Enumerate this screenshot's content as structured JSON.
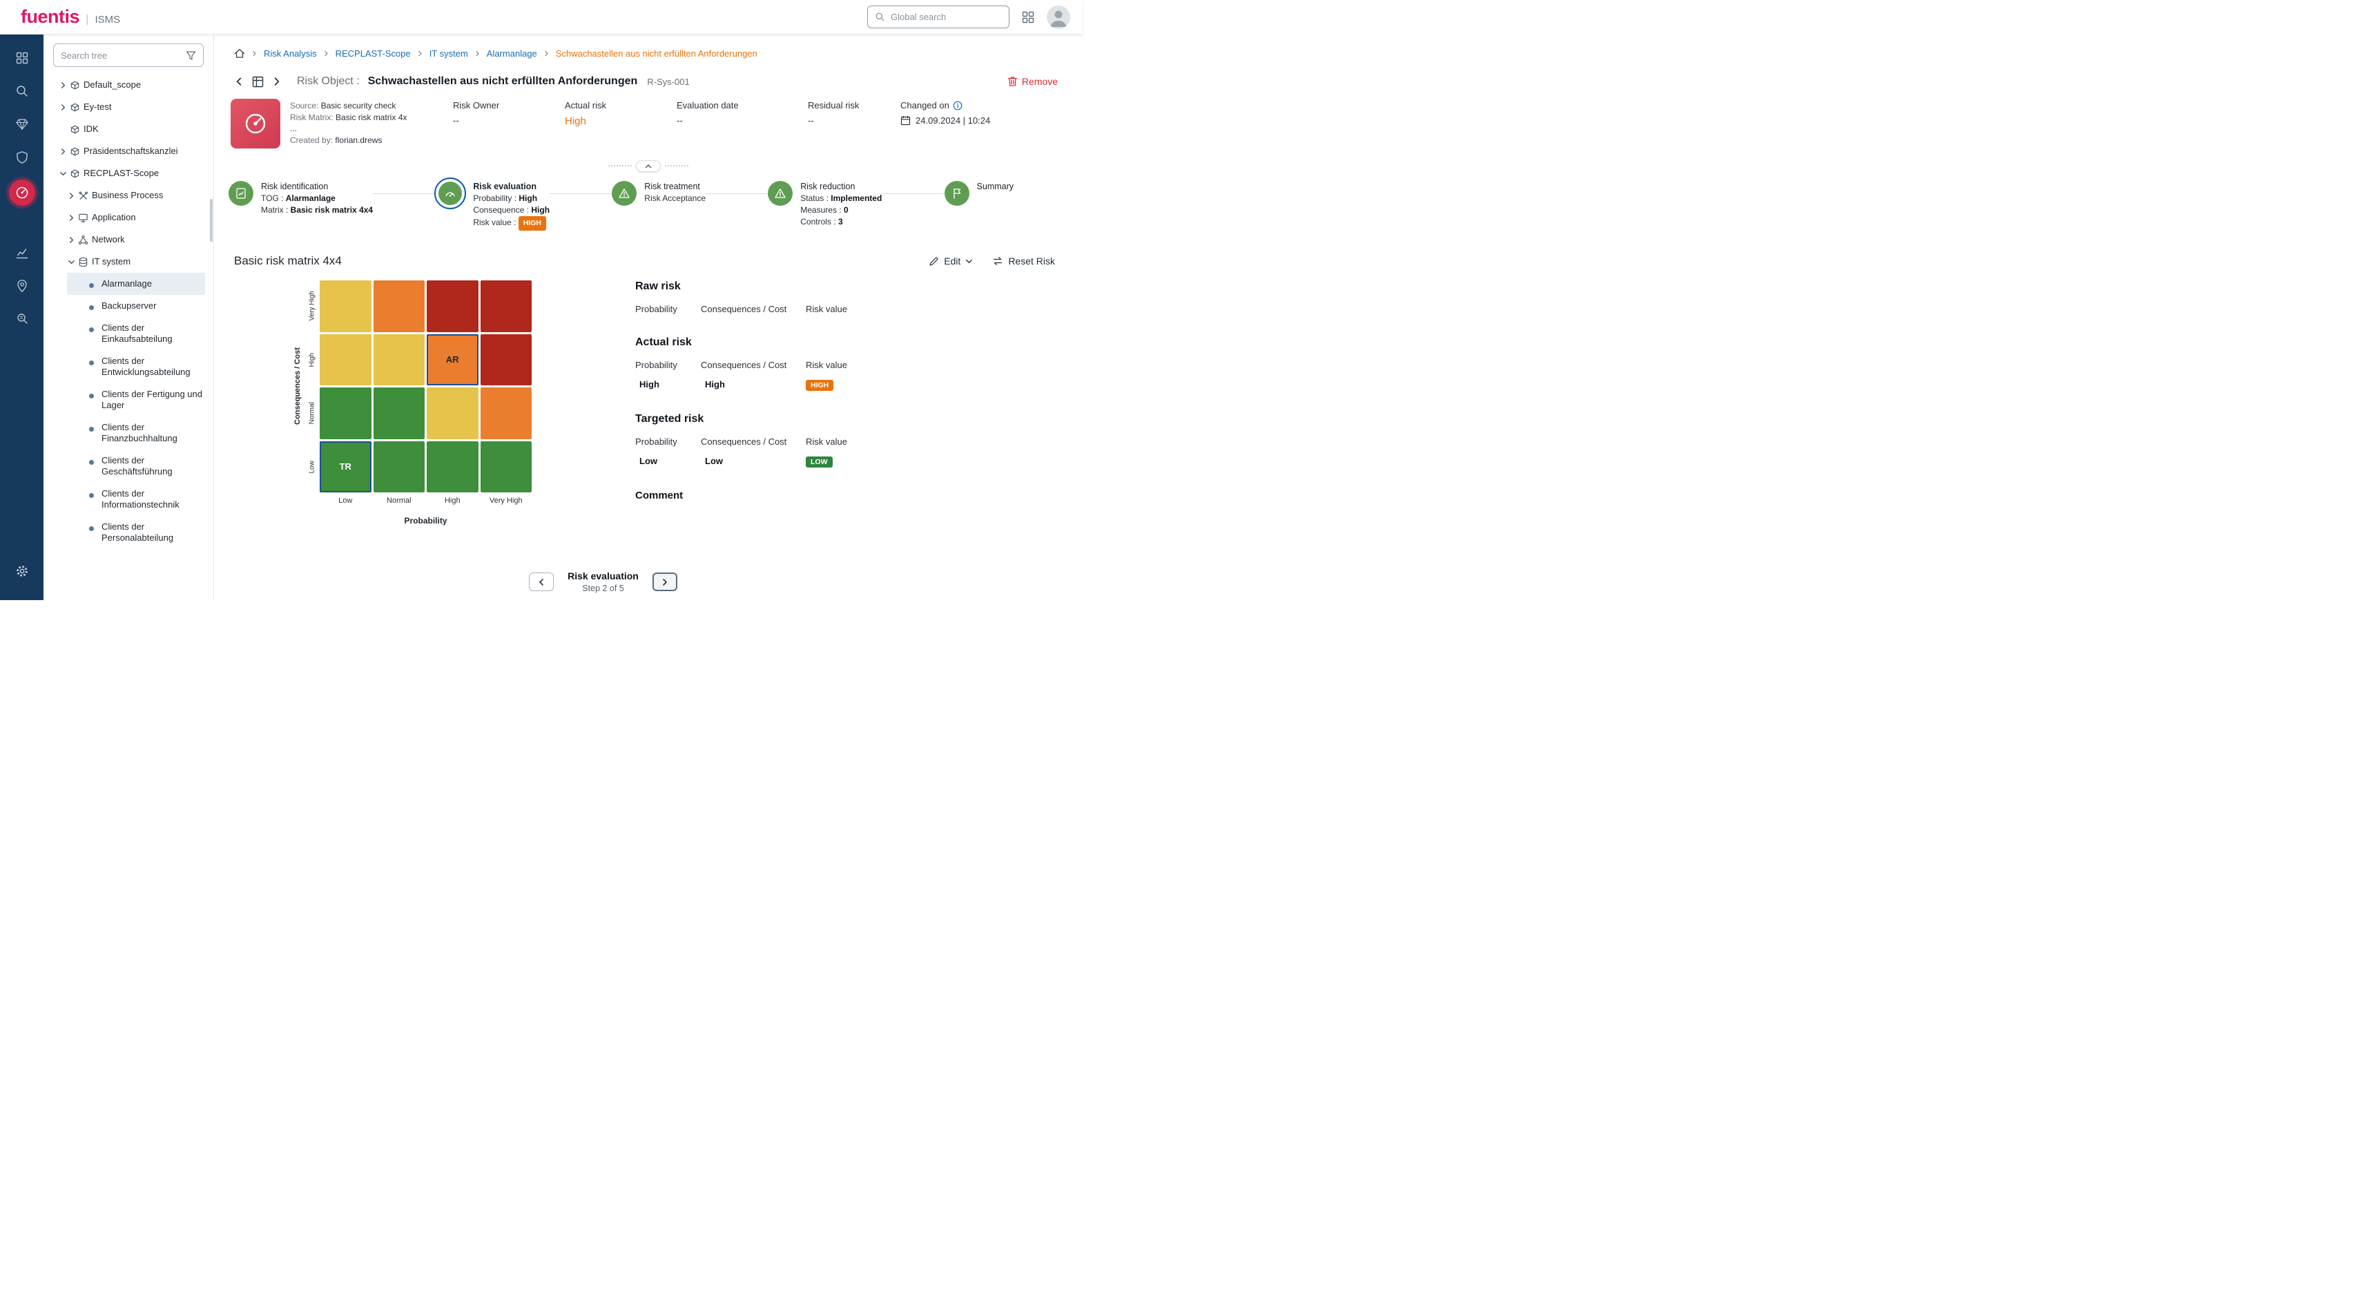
{
  "topbar": {
    "logo": "fuentis",
    "separator": "|",
    "product": "ISMS",
    "search_placeholder": "Global search"
  },
  "icon_sidebar": {
    "active_color": "#d2294b",
    "top": [
      {
        "name": "dashboard"
      },
      {
        "name": "search"
      },
      {
        "name": "gem"
      },
      {
        "name": "shield"
      },
      {
        "name": "risk-gauge",
        "active": true
      }
    ],
    "middle": [
      {
        "name": "analytics"
      },
      {
        "name": "location"
      },
      {
        "name": "audit"
      }
    ],
    "bottom": [
      {
        "name": "settings"
      }
    ]
  },
  "tree": {
    "search_placeholder": "Search tree",
    "items": [
      {
        "label": "Default_scope",
        "icon": "scope",
        "chevron": "right",
        "level": 0
      },
      {
        "label": "Ey-test",
        "icon": "scope",
        "chevron": "right",
        "level": 0
      },
      {
        "label": "IDK",
        "icon": "scope",
        "chevron": "none",
        "level": 0
      },
      {
        "label": "Präsidentschaftskanzlei",
        "icon": "scope",
        "chevron": "right",
        "level": 0
      },
      {
        "label": "RECPLAST-Scope",
        "icon": "scope",
        "chevron": "down",
        "level": 0
      },
      {
        "label": "Business Process",
        "icon": "process",
        "chevron": "right",
        "level": 1
      },
      {
        "label": "Application",
        "icon": "application",
        "chevron": "right",
        "level": 1
      },
      {
        "label": "Network",
        "icon": "network",
        "chevron": "right",
        "level": 1
      },
      {
        "label": "IT system",
        "icon": "itsystem",
        "chevron": "down",
        "level": 1
      },
      {
        "label": "Alarmanlage",
        "icon": "bullet",
        "chevron": "none",
        "level": 2,
        "selected": true
      },
      {
        "label": "Backupserver",
        "icon": "bullet",
        "chevron": "none",
        "level": 2
      },
      {
        "label": "Clients der Einkaufsabteilung",
        "icon": "bullet",
        "chevron": "none",
        "level": 2
      },
      {
        "label": "Clients der Entwicklungsabteilung",
        "icon": "bullet",
        "chevron": "none",
        "level": 2
      },
      {
        "label": "Clients der Fertigung und Lager",
        "icon": "bullet",
        "chevron": "none",
        "level": 2
      },
      {
        "label": "Clients der Finanzbuchhaltung",
        "icon": "bullet",
        "chevron": "none",
        "level": 2
      },
      {
        "label": "Clients der Geschäftsführung",
        "icon": "bullet",
        "chevron": "none",
        "level": 2
      },
      {
        "label": "Clients der Informationstechnik",
        "icon": "bullet",
        "chevron": "none",
        "level": 2
      },
      {
        "label": "Clients der Personalabteilung",
        "icon": "bullet",
        "chevron": "none",
        "level": 2
      }
    ]
  },
  "breadcrumb": {
    "links": [
      "Risk Analysis",
      "RECPLAST-Scope",
      "IT system",
      "Alarmanlage"
    ],
    "current": "Schwachastellen aus nicht erfüllten Anforderungen"
  },
  "header": {
    "object_label": "Risk Object :",
    "title": "Schwachastellen aus nicht erfüllten Anforderungen",
    "object_id": "R-Sys-001",
    "remove_label": "Remove"
  },
  "info": {
    "meta": [
      {
        "label": "Source:",
        "value": "Basic security check"
      },
      {
        "label": "Risk Matrix:",
        "value": "Basic risk matrix 4x ..."
      },
      {
        "label": "Created by:",
        "value": "florian.drews"
      }
    ],
    "columns": [
      {
        "label": "Risk Owner",
        "value": "--"
      },
      {
        "label": "Actual risk",
        "value": "High",
        "color": "#e9730c",
        "big": true
      },
      {
        "label": "Evaluation date",
        "value": "--"
      },
      {
        "label": "Residual risk",
        "value": "--"
      },
      {
        "label": "Changed on",
        "value": "24.09.2024 | 10:24",
        "info": true,
        "calendar": true
      }
    ]
  },
  "steps": [
    {
      "title": "Risk identification",
      "icon": "identify",
      "lines": [
        {
          "label": "TOG :",
          "value": "Alarmanlage"
        },
        {
          "label": "Matrix :",
          "value": "Basic risk matrix 4x4"
        }
      ]
    },
    {
      "title": "Risk evaluation",
      "icon": "evaluate",
      "active": true,
      "lines": [
        {
          "label": "Probability :",
          "value": "High"
        },
        {
          "label": "Consequence :",
          "value": "High"
        },
        {
          "label": "Risk value :",
          "badge": "HIGH",
          "badge_color": "#e9730c"
        }
      ]
    },
    {
      "title": "Risk treatment",
      "icon": "treatment",
      "lines": [
        {
          "label": "Risk Acceptance"
        }
      ]
    },
    {
      "title": "Risk reduction",
      "icon": "reduction",
      "lines": [
        {
          "label": "Status :",
          "value": "Implemented"
        },
        {
          "label": "Measures :",
          "value": "0"
        },
        {
          "label": "Controls :",
          "value": "3"
        }
      ]
    },
    {
      "title": "Summary",
      "icon": "summary",
      "lines": []
    }
  ],
  "matrix_section": {
    "title": "Basic risk matrix 4x4",
    "edit_label": "Edit",
    "reset_label": "Reset Risk"
  },
  "chart_data": {
    "type": "heatmap",
    "title": "Basic risk matrix 4x4",
    "xlabel": "Probability",
    "ylabel": "Consequences / Cost",
    "x_categories": [
      "Low",
      "Normal",
      "High",
      "Very High"
    ],
    "y_categories_top_to_bottom": [
      "Very High",
      "High",
      "Normal",
      "Low"
    ],
    "colors": {
      "green": "#3e8e3b",
      "yellow": "#e6c34b",
      "orange": "#eb7d2f",
      "red": "#b0271c"
    },
    "marker_border": "#1d4f93",
    "rows": [
      {
        "y": "Very High",
        "cells": [
          {
            "level": "yellow"
          },
          {
            "level": "orange"
          },
          {
            "level": "red"
          },
          {
            "level": "red"
          }
        ]
      },
      {
        "y": "High",
        "cells": [
          {
            "level": "yellow"
          },
          {
            "level": "yellow"
          },
          {
            "level": "orange",
            "marker": "AR",
            "marker_color": "#1f2730"
          },
          {
            "level": "red"
          }
        ]
      },
      {
        "y": "Normal",
        "cells": [
          {
            "level": "green"
          },
          {
            "level": "green"
          },
          {
            "level": "yellow"
          },
          {
            "level": "orange"
          }
        ]
      },
      {
        "y": "Low",
        "cells": [
          {
            "level": "green",
            "marker": "TR",
            "marker_color": "#ffffff"
          },
          {
            "level": "green"
          },
          {
            "level": "green"
          },
          {
            "level": "green"
          }
        ]
      }
    ],
    "markers": {
      "AR": {
        "x": "High",
        "y": "High"
      },
      "TR": {
        "x": "Low",
        "y": "Low"
      }
    }
  },
  "risk_panel": {
    "sections": [
      {
        "title": "Raw risk",
        "columns": [
          "Probability",
          "Consequences / Cost",
          "Risk value"
        ],
        "probability": "",
        "consequences": "",
        "badge": null
      },
      {
        "title": "Actual risk",
        "columns": [
          "Probability",
          "Consequences / Cost",
          "Risk value"
        ],
        "probability": "High",
        "consequences": "High",
        "badge": {
          "text": "HIGH",
          "color": "#e9730c"
        }
      },
      {
        "title": "Targeted risk",
        "columns": [
          "Probability",
          "Consequences / Cost",
          "Risk value"
        ],
        "probability": "Low",
        "consequences": "Low",
        "badge": {
          "text": "LOW",
          "color": "#2e8540"
        }
      }
    ],
    "comment_title": "Comment"
  },
  "pagination": {
    "title": "Risk evaluation",
    "subtitle": "Step 2 of 5"
  }
}
